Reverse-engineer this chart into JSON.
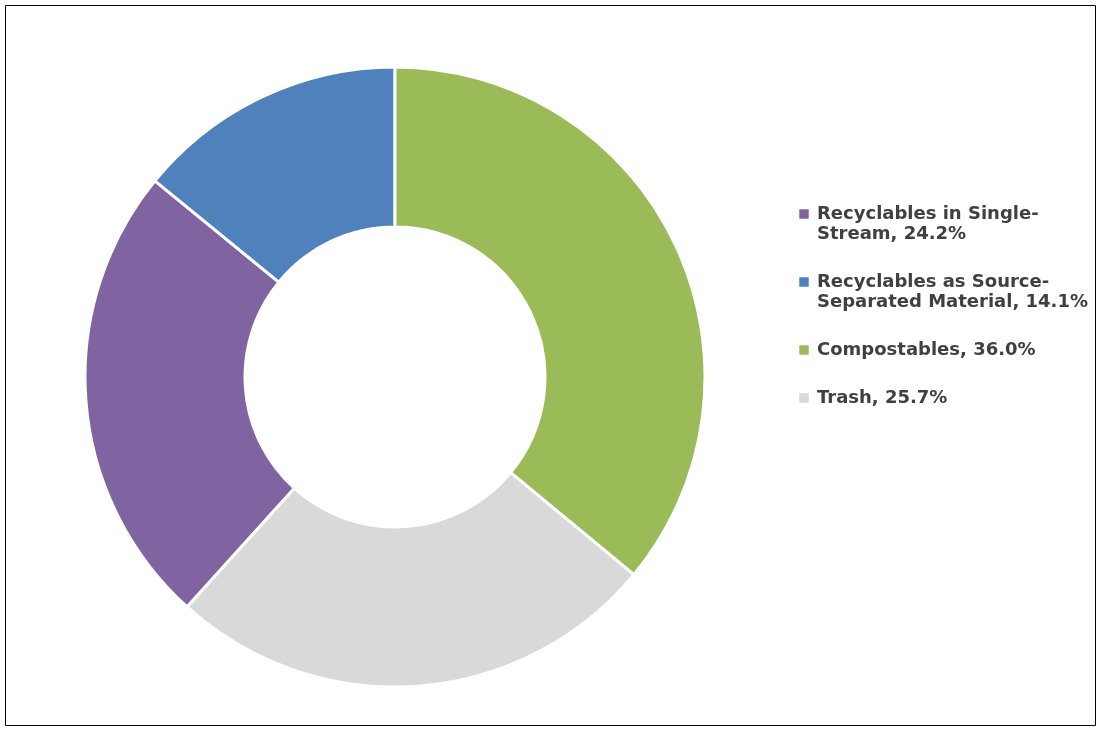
{
  "chart_data": {
    "type": "donut",
    "categories": [
      "Recyclables in Single-Stream",
      "Recyclables as Source-Separated Material",
      "Compostables",
      "Trash"
    ],
    "values": [
      24.2,
      14.1,
      36.0,
      25.7
    ],
    "value_labels": [
      "24.2%",
      "14.1%",
      "36.0%",
      "25.7%"
    ],
    "colors": [
      "#8064a2",
      "#4f81bd",
      "#9bbb59",
      "#d9d9d9"
    ],
    "legend": "right"
  }
}
